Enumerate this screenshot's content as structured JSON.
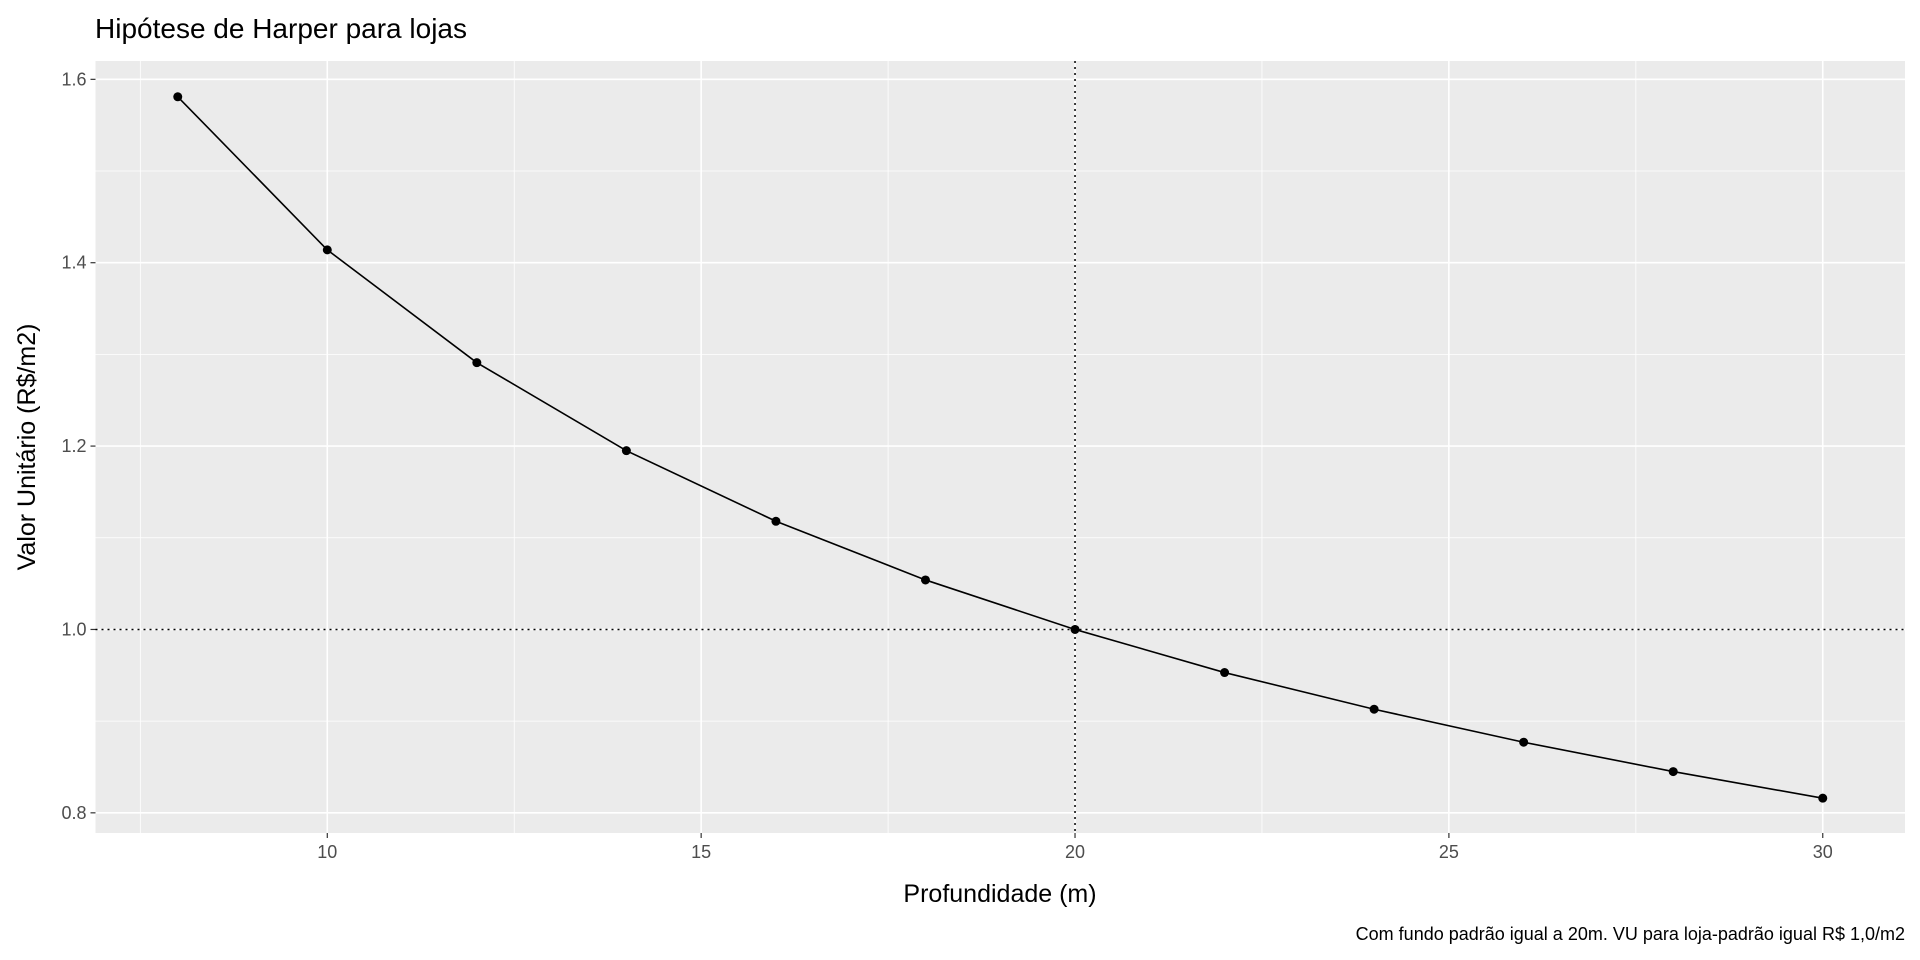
{
  "chart_data": {
    "type": "line",
    "title": "Hipótese de Harper para lojas",
    "x_label": "Profundidade (m)",
    "y_label": "Valor Unitário (R$/m2)",
    "caption": "Com fundo padrão igual a 20m. VU para loja-padrão igual R$ 1,0/m2",
    "x": [
      8,
      10,
      12,
      14,
      16,
      18,
      20,
      22,
      24,
      26,
      28,
      30
    ],
    "series": [
      {
        "color": "#000000",
        "values": [
          1.581,
          1.414,
          1.291,
          1.195,
          1.118,
          1.054,
          1.0,
          0.953,
          0.913,
          0.877,
          0.845,
          0.816
        ]
      }
    ],
    "xlim": [
      6.9,
      31.1
    ],
    "ylim": [
      0.778,
      1.62
    ],
    "xticks": [
      10,
      15,
      20,
      25,
      30
    ],
    "yticks": [
      0.8,
      {
        "value": 1,
        "label": "1.0"
      },
      1.2,
      1.4,
      1.6
    ],
    "x_minor_ticks": [
      7.5,
      12.5,
      17.5,
      22.5,
      27.5
    ],
    "y_minor_ticks": [
      0.9,
      1.1,
      1.3,
      1.5
    ],
    "vline": 20,
    "hline": 1,
    "grid": true
  }
}
